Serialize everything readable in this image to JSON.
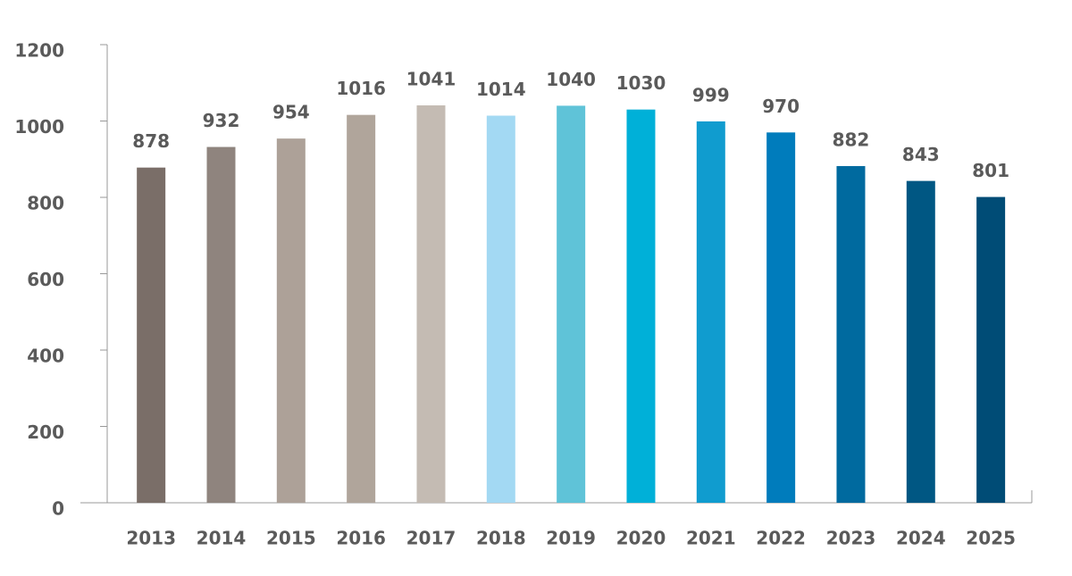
{
  "chart_data": {
    "type": "bar",
    "categories": [
      "2013",
      "2014",
      "2015",
      "2016",
      "2017",
      "2018",
      "2019",
      "2020",
      "2021",
      "2022",
      "2023",
      "2024",
      "2025"
    ],
    "values": [
      878,
      932,
      954,
      1016,
      1041,
      1014,
      1040,
      1030,
      999,
      970,
      882,
      843,
      801
    ],
    "colors": [
      "#7a6e68",
      "#8f847e",
      "#ada198",
      "#b0a59b",
      "#c4bbb3",
      "#a3d9f3",
      "#5fc3d8",
      "#00b0d8",
      "#109ccf",
      "#007cbc",
      "#006a9f",
      "#005783",
      "#004c76"
    ],
    "ylim": [
      0,
      1200
    ],
    "yticks": [
      0,
      200,
      400,
      600,
      800,
      1000,
      1200
    ],
    "grid": false
  }
}
